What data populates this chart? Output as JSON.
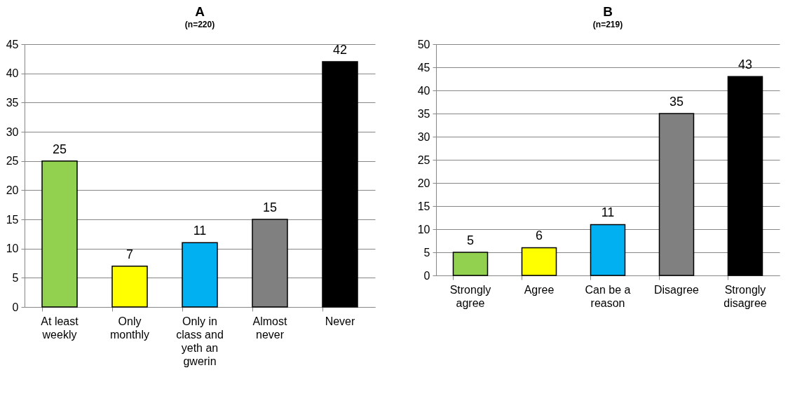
{
  "chart_data": [
    {
      "type": "bar",
      "title": "A",
      "subtitle": "(n=220)",
      "categories": [
        "At least weekly",
        "Only monthly",
        "Only in class and yeth an gwerin",
        "Almost never",
        "Never"
      ],
      "values": [
        25,
        7,
        11,
        15,
        42
      ],
      "colors": [
        "#92d050",
        "#ffff00",
        "#00b0f0",
        "#808080",
        "#000000"
      ],
      "ylim": [
        0,
        45
      ],
      "yticks": [
        0,
        5,
        10,
        15,
        20,
        25,
        30,
        35,
        40,
        45
      ],
      "grid": "y",
      "data_labels": true
    },
    {
      "type": "bar",
      "title": "B",
      "subtitle": "(n=219)",
      "categories": [
        "Strongly agree",
        "Agree",
        "Can be a reason",
        "Disagree",
        "Strongly disagree"
      ],
      "values": [
        5,
        6,
        11,
        35,
        43
      ],
      "colors": [
        "#92d050",
        "#ffff00",
        "#00b0f0",
        "#808080",
        "#000000"
      ],
      "ylim": [
        0,
        50
      ],
      "yticks": [
        0,
        5,
        10,
        15,
        20,
        25,
        30,
        35,
        40,
        45,
        50
      ],
      "grid": "y",
      "data_labels": true
    }
  ]
}
